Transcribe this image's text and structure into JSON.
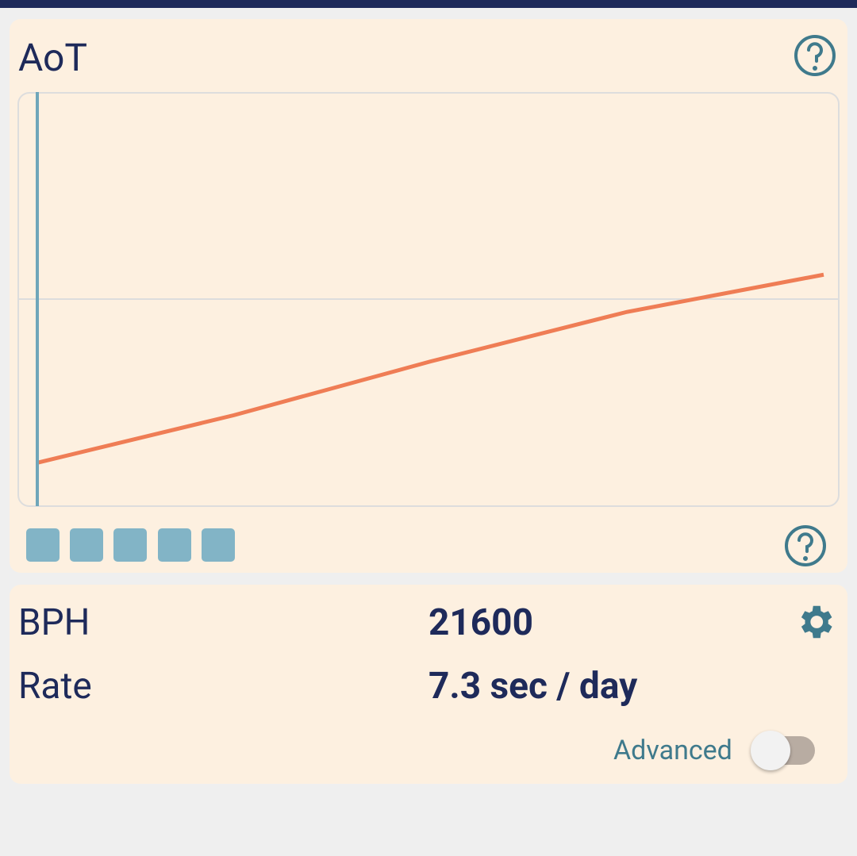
{
  "header": {
    "title": "AoT"
  },
  "chart_data": {
    "type": "line",
    "values": [
      -0.79,
      -0.56,
      -0.3,
      -0.06,
      0.12
    ],
    "ylim": [
      -1,
      1
    ],
    "color": "#ef7d55"
  },
  "settings": {
    "rows": [
      {
        "label": "BPH",
        "value": "21600"
      },
      {
        "label": "Rate",
        "value": "7.3 sec / day"
      }
    ],
    "toggle_label": "Advanced"
  }
}
